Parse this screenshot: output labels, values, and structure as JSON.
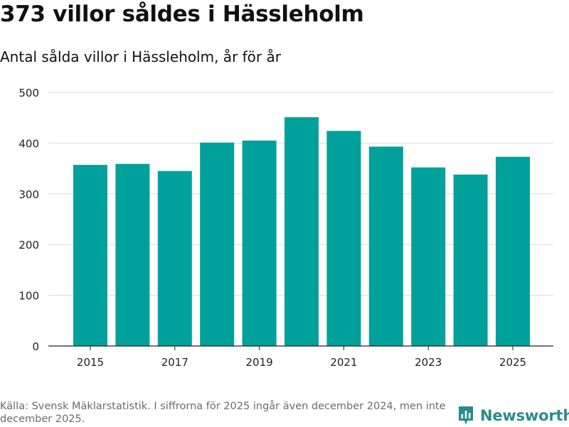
{
  "chart_data": {
    "type": "bar",
    "title": "373 villor såldes i Hässleholm",
    "subtitle": "Antal sålda villor i Hässleholm, år för år",
    "categories": [
      "2015",
      "2016",
      "2017",
      "2018",
      "2019",
      "2020",
      "2021",
      "2022",
      "2023",
      "2024",
      "2025"
    ],
    "values": [
      357,
      359,
      345,
      401,
      405,
      451,
      424,
      393,
      352,
      338,
      373
    ],
    "x_tick_labels": [
      "2015",
      "2017",
      "2019",
      "2021",
      "2023",
      "2025"
    ],
    "y_ticks": [
      0,
      100,
      200,
      300,
      400,
      500
    ],
    "ylim": [
      0,
      500
    ],
    "xlabel": "",
    "ylabel": "",
    "grid": true,
    "bar_color": "#00a19a"
  },
  "footer": {
    "source": "Källa: Svensk Mäklarstatistik. I siffrorna för 2025 ingår även december 2024, men inte december 2025."
  },
  "brand": {
    "name": "Newsworthy",
    "color": "#2b8c8a"
  }
}
